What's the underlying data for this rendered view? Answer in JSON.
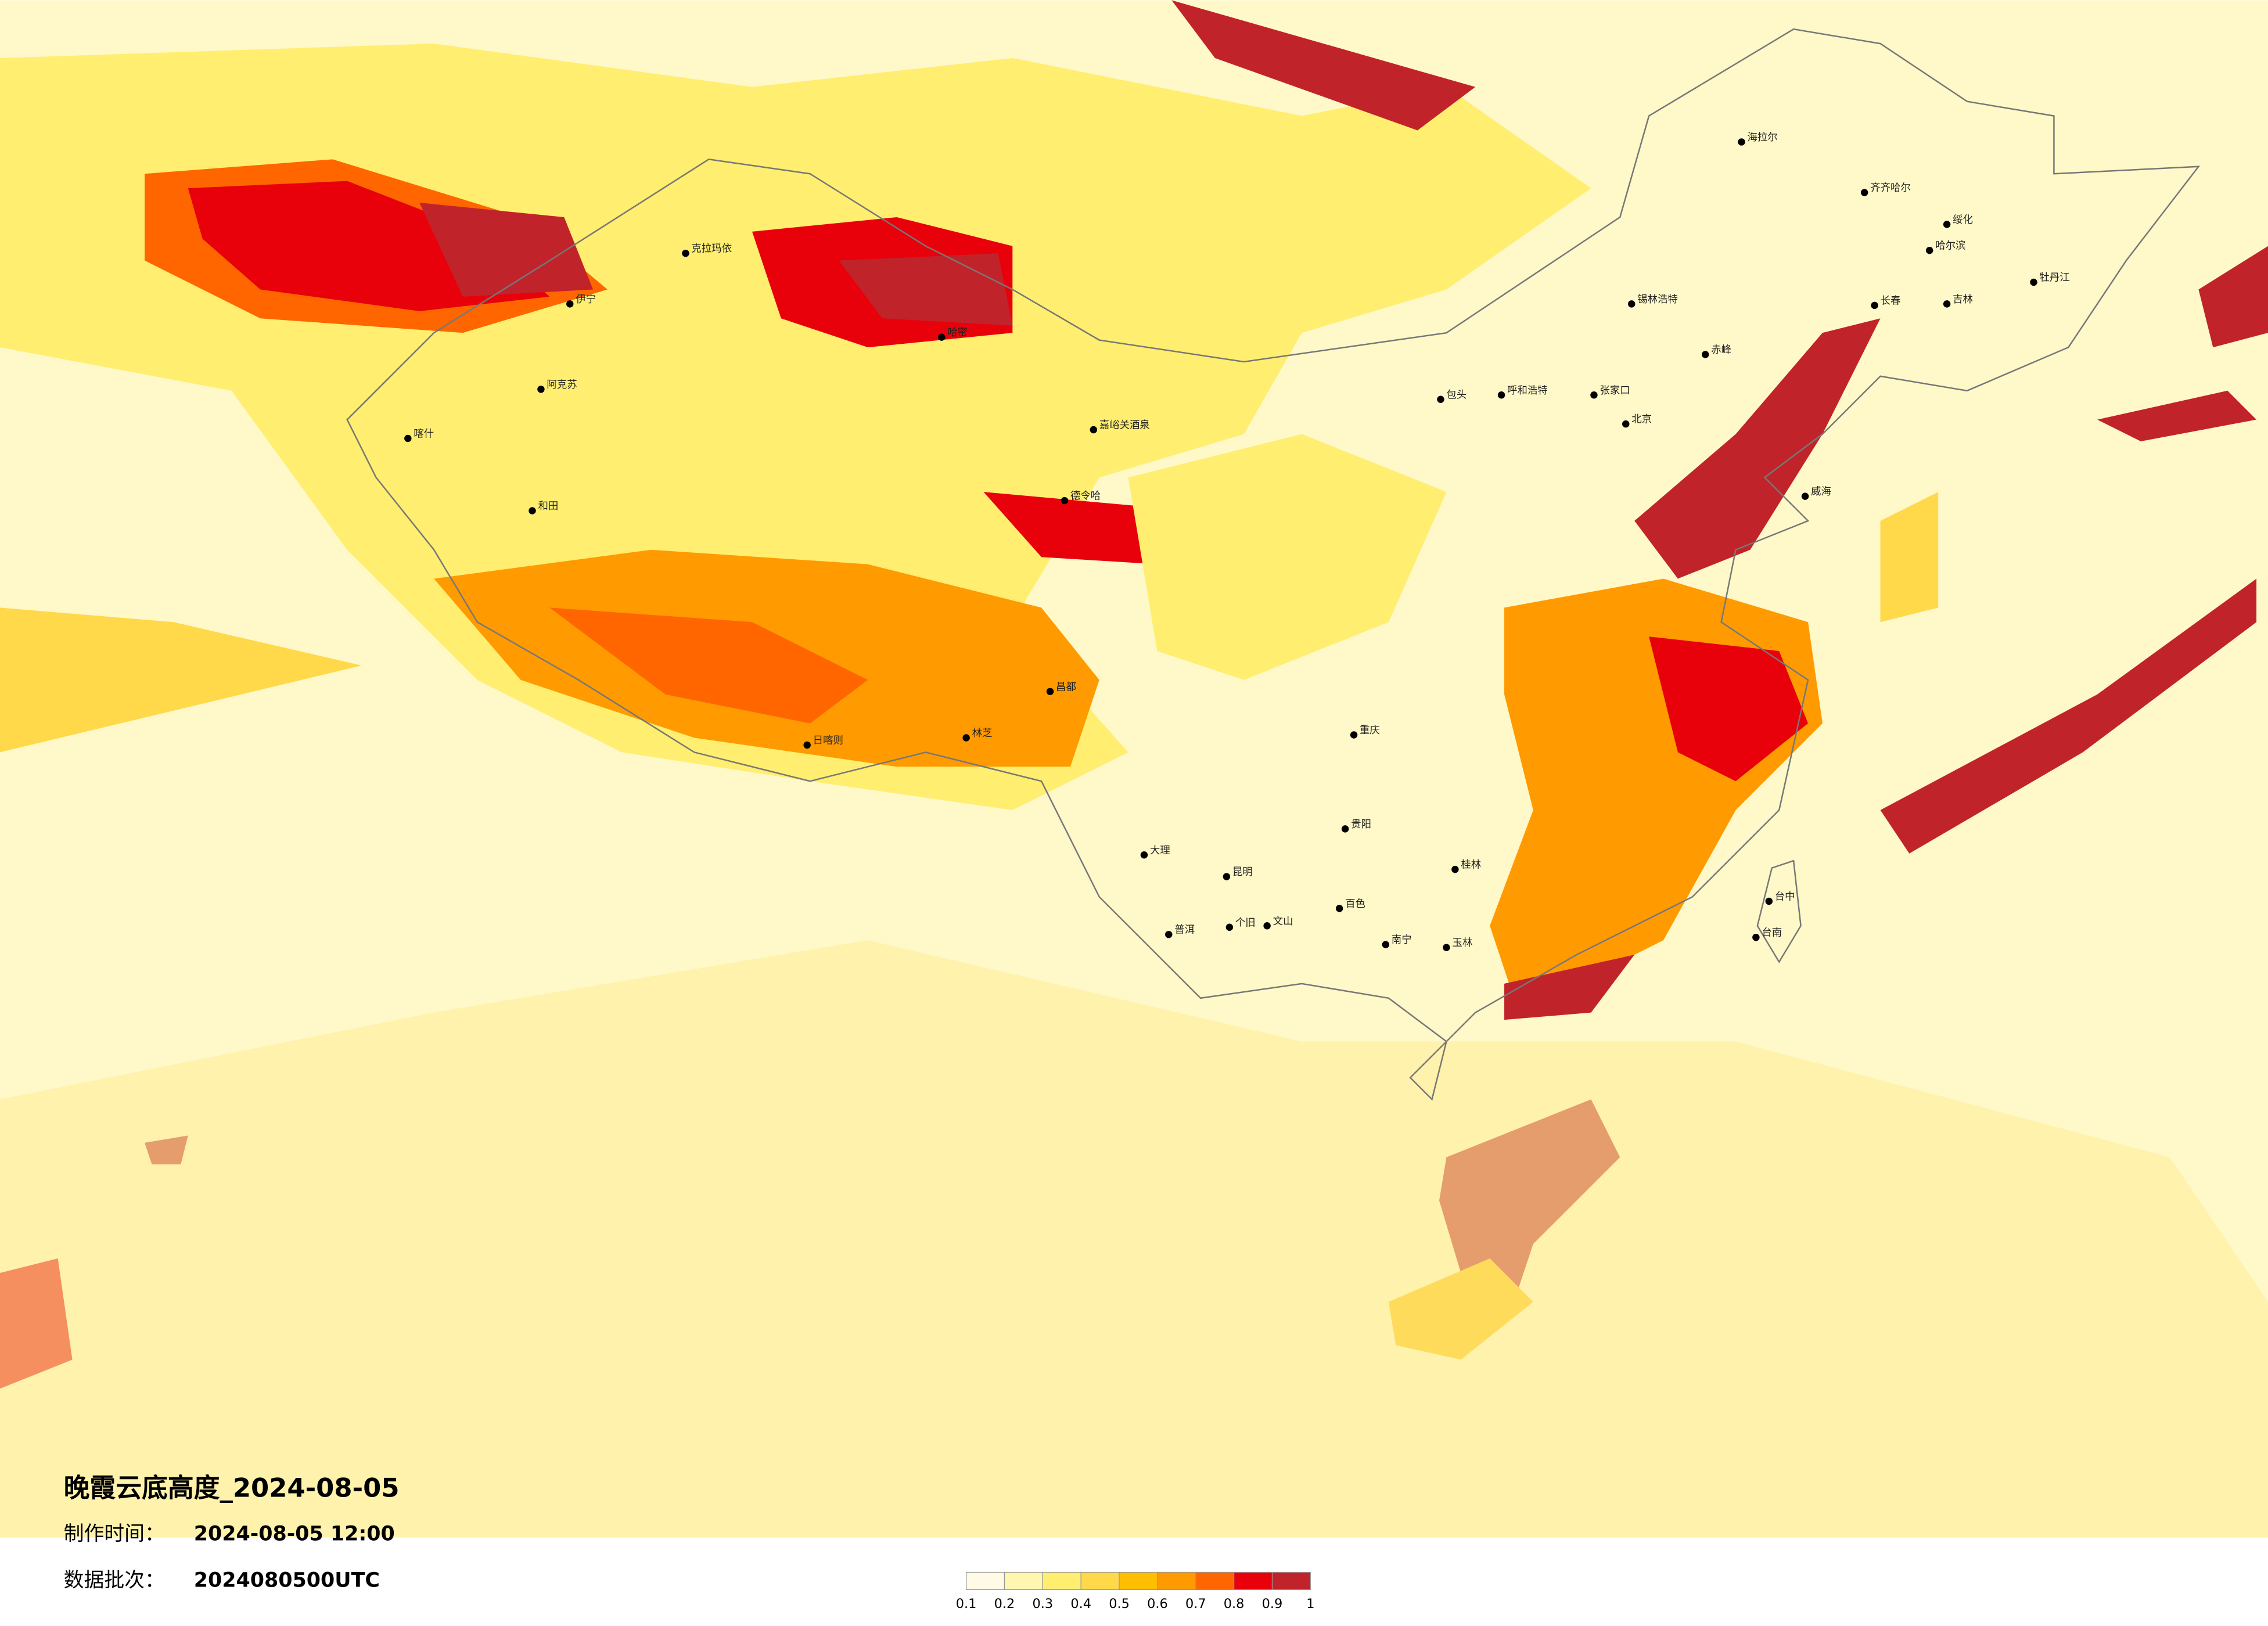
{
  "title": "晚霞云底高度_2024-08-05",
  "made_time_label": "制作时间：",
  "made_time": "2024-08-05 12:00",
  "batch_label": "数据批次：",
  "batch": "2024080500UTC",
  "colorbar": {
    "ticks": [
      0.1,
      0.2,
      0.3,
      0.4,
      0.5,
      0.6,
      0.7,
      0.8,
      0.9,
      1
    ],
    "colors": [
      "#fffbe6",
      "#fff7b0",
      "#ffee70",
      "#ffd94a",
      "#ffbf00",
      "#ff9a00",
      "#ff6600",
      "#e8000b",
      "#c1232b"
    ]
  },
  "cities": [
    "伊宁",
    "克拉玛依",
    "阿克苏",
    "喀什",
    "和田",
    "哈密",
    "嘉峪关酒泉",
    "德令哈",
    "日喀则",
    "林芝",
    "昌都",
    "海拉尔",
    "齐齐哈尔",
    "哈尔滨",
    "长春",
    "吉林",
    "锡林浩特",
    "呼和浩特",
    "张家口",
    "包头",
    "北京",
    "威海",
    "南宁",
    "玉林",
    "桂林",
    "贵阳",
    "昆明",
    "大理",
    "文山",
    "个旧",
    "百色",
    "台中",
    "台南",
    "普洱",
    "牡丹江",
    "绥化",
    "赤峰",
    "重庆"
  ]
}
